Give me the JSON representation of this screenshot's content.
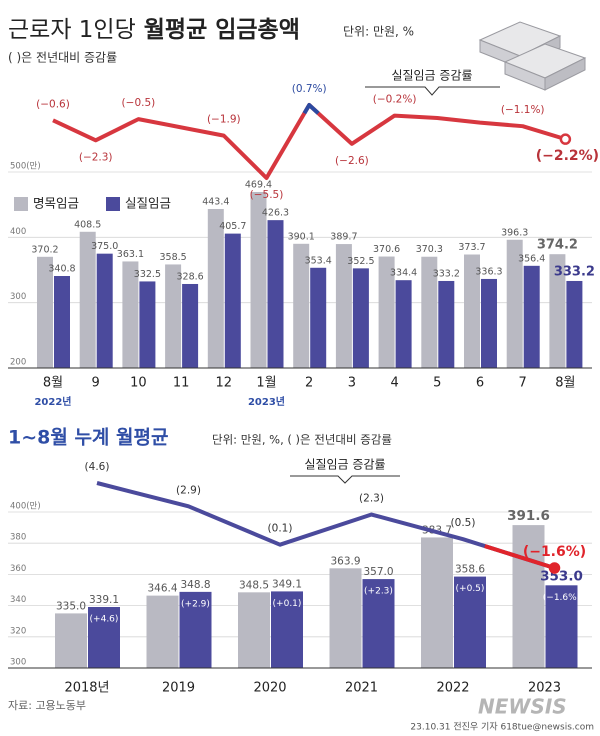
{
  "header": {
    "title_light": "근로자 1인당",
    "title_bold": "월평균 임금총액",
    "unit": "단위: 만원, %",
    "note": "( )은 전년대비 증감률"
  },
  "chart_data": [
    {
      "type": "bar",
      "categories": [
        "8월",
        "9",
        "10",
        "11",
        "12",
        "1월",
        "2",
        "3",
        "4",
        "5",
        "6",
        "7",
        "8월"
      ],
      "category_years": [
        "2022년",
        null,
        null,
        null,
        null,
        "2023년",
        null,
        null,
        null,
        null,
        null,
        null,
        null
      ],
      "ylim": [
        200,
        500
      ],
      "yticks": [
        {
          "value": 500,
          "label": "500(만)"
        },
        400,
        300,
        200
      ],
      "grid": true,
      "legend": "top-left",
      "series": [
        {
          "name": "명목임금",
          "color": "#b9b9c2",
          "values": [
            370.2,
            408.5,
            363.1,
            358.5,
            443.4,
            469.4,
            390.1,
            389.7,
            370.6,
            370.3,
            373.7,
            396.3,
            374.2
          ],
          "value_labels": [
            "370.2",
            "408.5",
            "363.1",
            "358.5",
            "443.4",
            "469.4",
            "390.1",
            "389.7",
            "370.6",
            "370.3",
            "373.7",
            "396.3",
            "374.2"
          ]
        },
        {
          "name": "실질임금",
          "color": "#4b4a9c",
          "values": [
            340.8,
            375,
            332.5,
            328.6,
            405.7,
            426.3,
            353.4,
            352.5,
            334.4,
            333.2,
            336.3,
            356.4,
            333.2
          ],
          "value_labels": [
            "340.8",
            "375.0",
            "332.5",
            "328.6",
            "405.7",
            "426.3",
            "353.4",
            "352.5",
            "334.4",
            "333.2",
            "336.3",
            "356.4",
            "333.2"
          ]
        },
        {
          "name": "실질임금 증감률",
          "type": "line",
          "axis": "y2",
          "color": "#d7373f",
          "positive_color": "#2c4aa0",
          "label_position": "auto",
          "values": [
            -0.6,
            -2.3,
            -0.5,
            -1.2,
            -1.9,
            -5.5,
            0.7,
            -2.6,
            -0.2,
            -0.4,
            -0.8,
            -1.1,
            -2.2
          ],
          "value_labels": [
            "(−0.6)",
            "(−2.3)",
            "(−0.5)",
            null,
            "(−1.9)",
            "(−5.5)",
            "(0.7%)",
            "(−2.6)",
            "(−0.2%)",
            null,
            null,
            "(−1.1%)",
            "(−2.2%)"
          ]
        }
      ]
    },
    {
      "type": "bar",
      "title": "1~8월 누계 월평균",
      "subtitle": "단위: 만원, %, ( )은 전년대비 증감률",
      "categories": [
        "2018년",
        "2019",
        "2020",
        "2021",
        "2022",
        "2023"
      ],
      "ylim": [
        300,
        400
      ],
      "yticks": [
        {
          "value": 400,
          "label": "400(만)"
        },
        380,
        360,
        340,
        320,
        300
      ],
      "grid": true,
      "series": [
        {
          "color": "#b9b9c2",
          "values": [
            335,
            346.4,
            348.5,
            363.9,
            383.7,
            391.6
          ],
          "value_labels": [
            "335.0",
            "346.4",
            "348.5",
            "363.9",
            "383.7",
            "391.6"
          ]
        },
        {
          "color": "#4b4a9c",
          "values": [
            339.1,
            348.8,
            349.1,
            357,
            358.6,
            353
          ],
          "value_labels": [
            "339.1",
            "348.8",
            "349.1",
            "357.0",
            "358.6",
            "353.0"
          ],
          "inner_labels": [
            "(+4.6)",
            "(+2.9)",
            "(+0.1)",
            "(+2.3)",
            "(+0.5)",
            "(−1.6%)"
          ]
        },
        {
          "name": "실질임금 증감률",
          "type": "line",
          "axis": "y2",
          "color": "#4b4a9c",
          "negative_color": "#e0242b",
          "label_position": "above",
          "values": [
            4.6,
            2.9,
            0.1,
            2.3,
            0.5,
            -1.6
          ],
          "value_labels": [
            "(4.6)",
            "(2.9)",
            "(0.1)",
            "(2.3)",
            "(0.5)",
            "(−1.6%)"
          ]
        }
      ]
    }
  ],
  "footer": {
    "source": "자료: 고용노동부",
    "logo": "NEWSIS",
    "credit": "23.10.31 전진우 기자 618tue@newsis.com"
  }
}
